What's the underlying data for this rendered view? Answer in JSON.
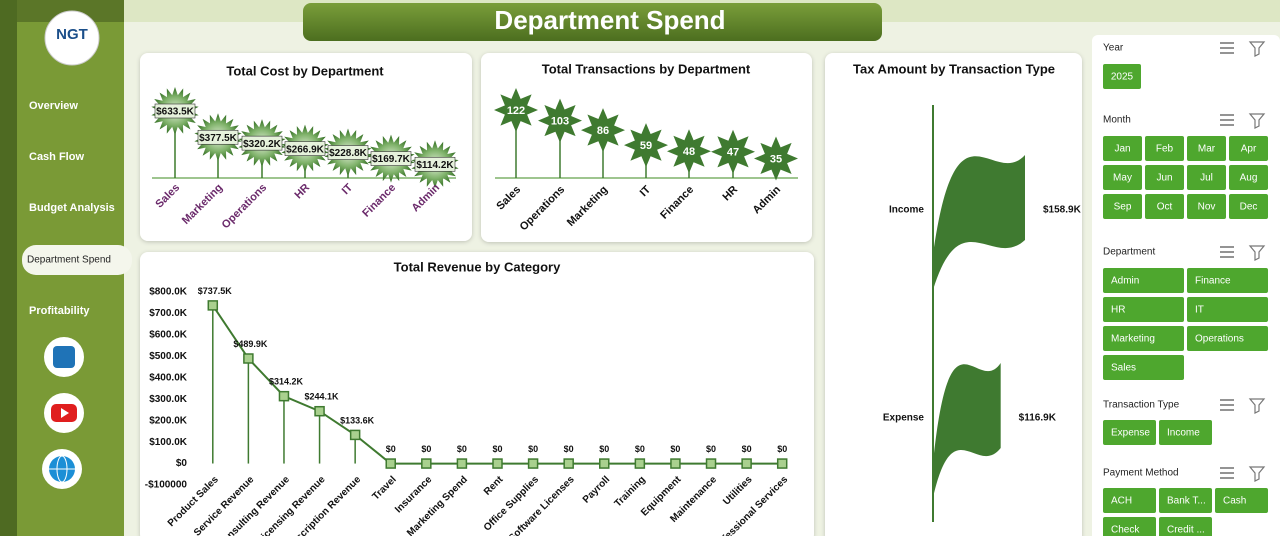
{
  "header": {
    "title": "Department Spend",
    "logo": "NGT"
  },
  "nav": {
    "items": [
      "Overview",
      "Cash Flow",
      "Budget Analysis",
      "Department Spend",
      "Profitability"
    ],
    "active": 3
  },
  "chart_data": [
    {
      "type": "lollipop",
      "title": "Total Cost by Department",
      "categories": [
        "Sales",
        "Marketing",
        "Operations",
        "HR",
        "IT",
        "Finance",
        "Admin"
      ],
      "values": [
        633500,
        377500,
        320200,
        266900,
        228800,
        169700,
        114200
      ],
      "value_labels": [
        "$633.5K",
        "$377.5K",
        "$320.2K",
        "$266.9K",
        "$228.8K",
        "$169.7K",
        "$114.2K"
      ],
      "color": "#3c7a2a"
    },
    {
      "type": "star",
      "title": "Total Transactions by Department",
      "categories": [
        "Sales",
        "Operations",
        "Marketing",
        "IT",
        "Finance",
        "HR",
        "Admin"
      ],
      "values": [
        122,
        103,
        86,
        59,
        48,
        47,
        35
      ],
      "color": "#3f7a30"
    },
    {
      "type": "flag",
      "title": "Tax Amount by Transaction Type",
      "categories": [
        "Income",
        "Expense"
      ],
      "values": [
        158900,
        116900
      ],
      "value_labels": [
        "$158.9K",
        "$116.9K"
      ],
      "color": "#3f7a30"
    },
    {
      "type": "line",
      "title": "Total Revenue by Category",
      "categories": [
        "Product Sales",
        "Service Revenue",
        "Consulting Revenue",
        "Licensing Revenue",
        "Subscription Revenue",
        "Travel",
        "Insurance",
        "Marketing Spend",
        "Rent",
        "Office Supplies",
        "Software Licenses",
        "Payroll",
        "Training",
        "Equipment",
        "Maintenance",
        "Utilities",
        "Professional Services"
      ],
      "values": [
        737500,
        489900,
        314200,
        244100,
        133600,
        0,
        0,
        0,
        0,
        0,
        0,
        0,
        0,
        0,
        0,
        0,
        0
      ],
      "value_labels": [
        "$737.5K",
        "$489.9K",
        "$314.2K",
        "$244.1K",
        "$133.6K",
        "$0",
        "$0",
        "$0",
        "$0",
        "$0",
        "$0",
        "$0",
        "$0",
        "$0",
        "$0",
        "$0",
        "$0"
      ],
      "color": "#3f7a30",
      "ylim": [
        -100000,
        800000
      ],
      "yticks": [
        {
          "value": -100000,
          "label": "-$100000"
        },
        {
          "value": 0,
          "label": "$0"
        },
        {
          "value": 100000,
          "label": "$100.0K"
        },
        {
          "value": 200000,
          "label": "$200.0K"
        },
        {
          "value": 300000,
          "label": "$300.0K"
        },
        {
          "value": 400000,
          "label": "$400.0K"
        },
        {
          "value": 500000,
          "label": "$500.0K"
        },
        {
          "value": 600000,
          "label": "$600.0K"
        },
        {
          "value": 700000,
          "label": "$700.0K"
        },
        {
          "value": 800000,
          "label": "$800.0K"
        }
      ],
      "grid": false
    }
  ],
  "slicers": [
    {
      "title": "Year",
      "items": [
        "2025"
      ]
    },
    {
      "title": "Month",
      "items": [
        "Jan",
        "Feb",
        "Mar",
        "Apr",
        "May",
        "Jun",
        "Jul",
        "Aug",
        "Sep",
        "Oct",
        "Nov",
        "Dec"
      ]
    },
    {
      "title": "Department",
      "items": [
        "Admin",
        "Finance",
        "HR",
        "IT",
        "Marketing",
        "Operations",
        "Sales"
      ]
    },
    {
      "title": "Transaction Type",
      "items": [
        "Expense",
        "Income"
      ]
    },
    {
      "title": "Payment Method",
      "items": [
        "ACH",
        "Bank T...",
        "Cash",
        "Check",
        "Credit ..."
      ]
    }
  ]
}
